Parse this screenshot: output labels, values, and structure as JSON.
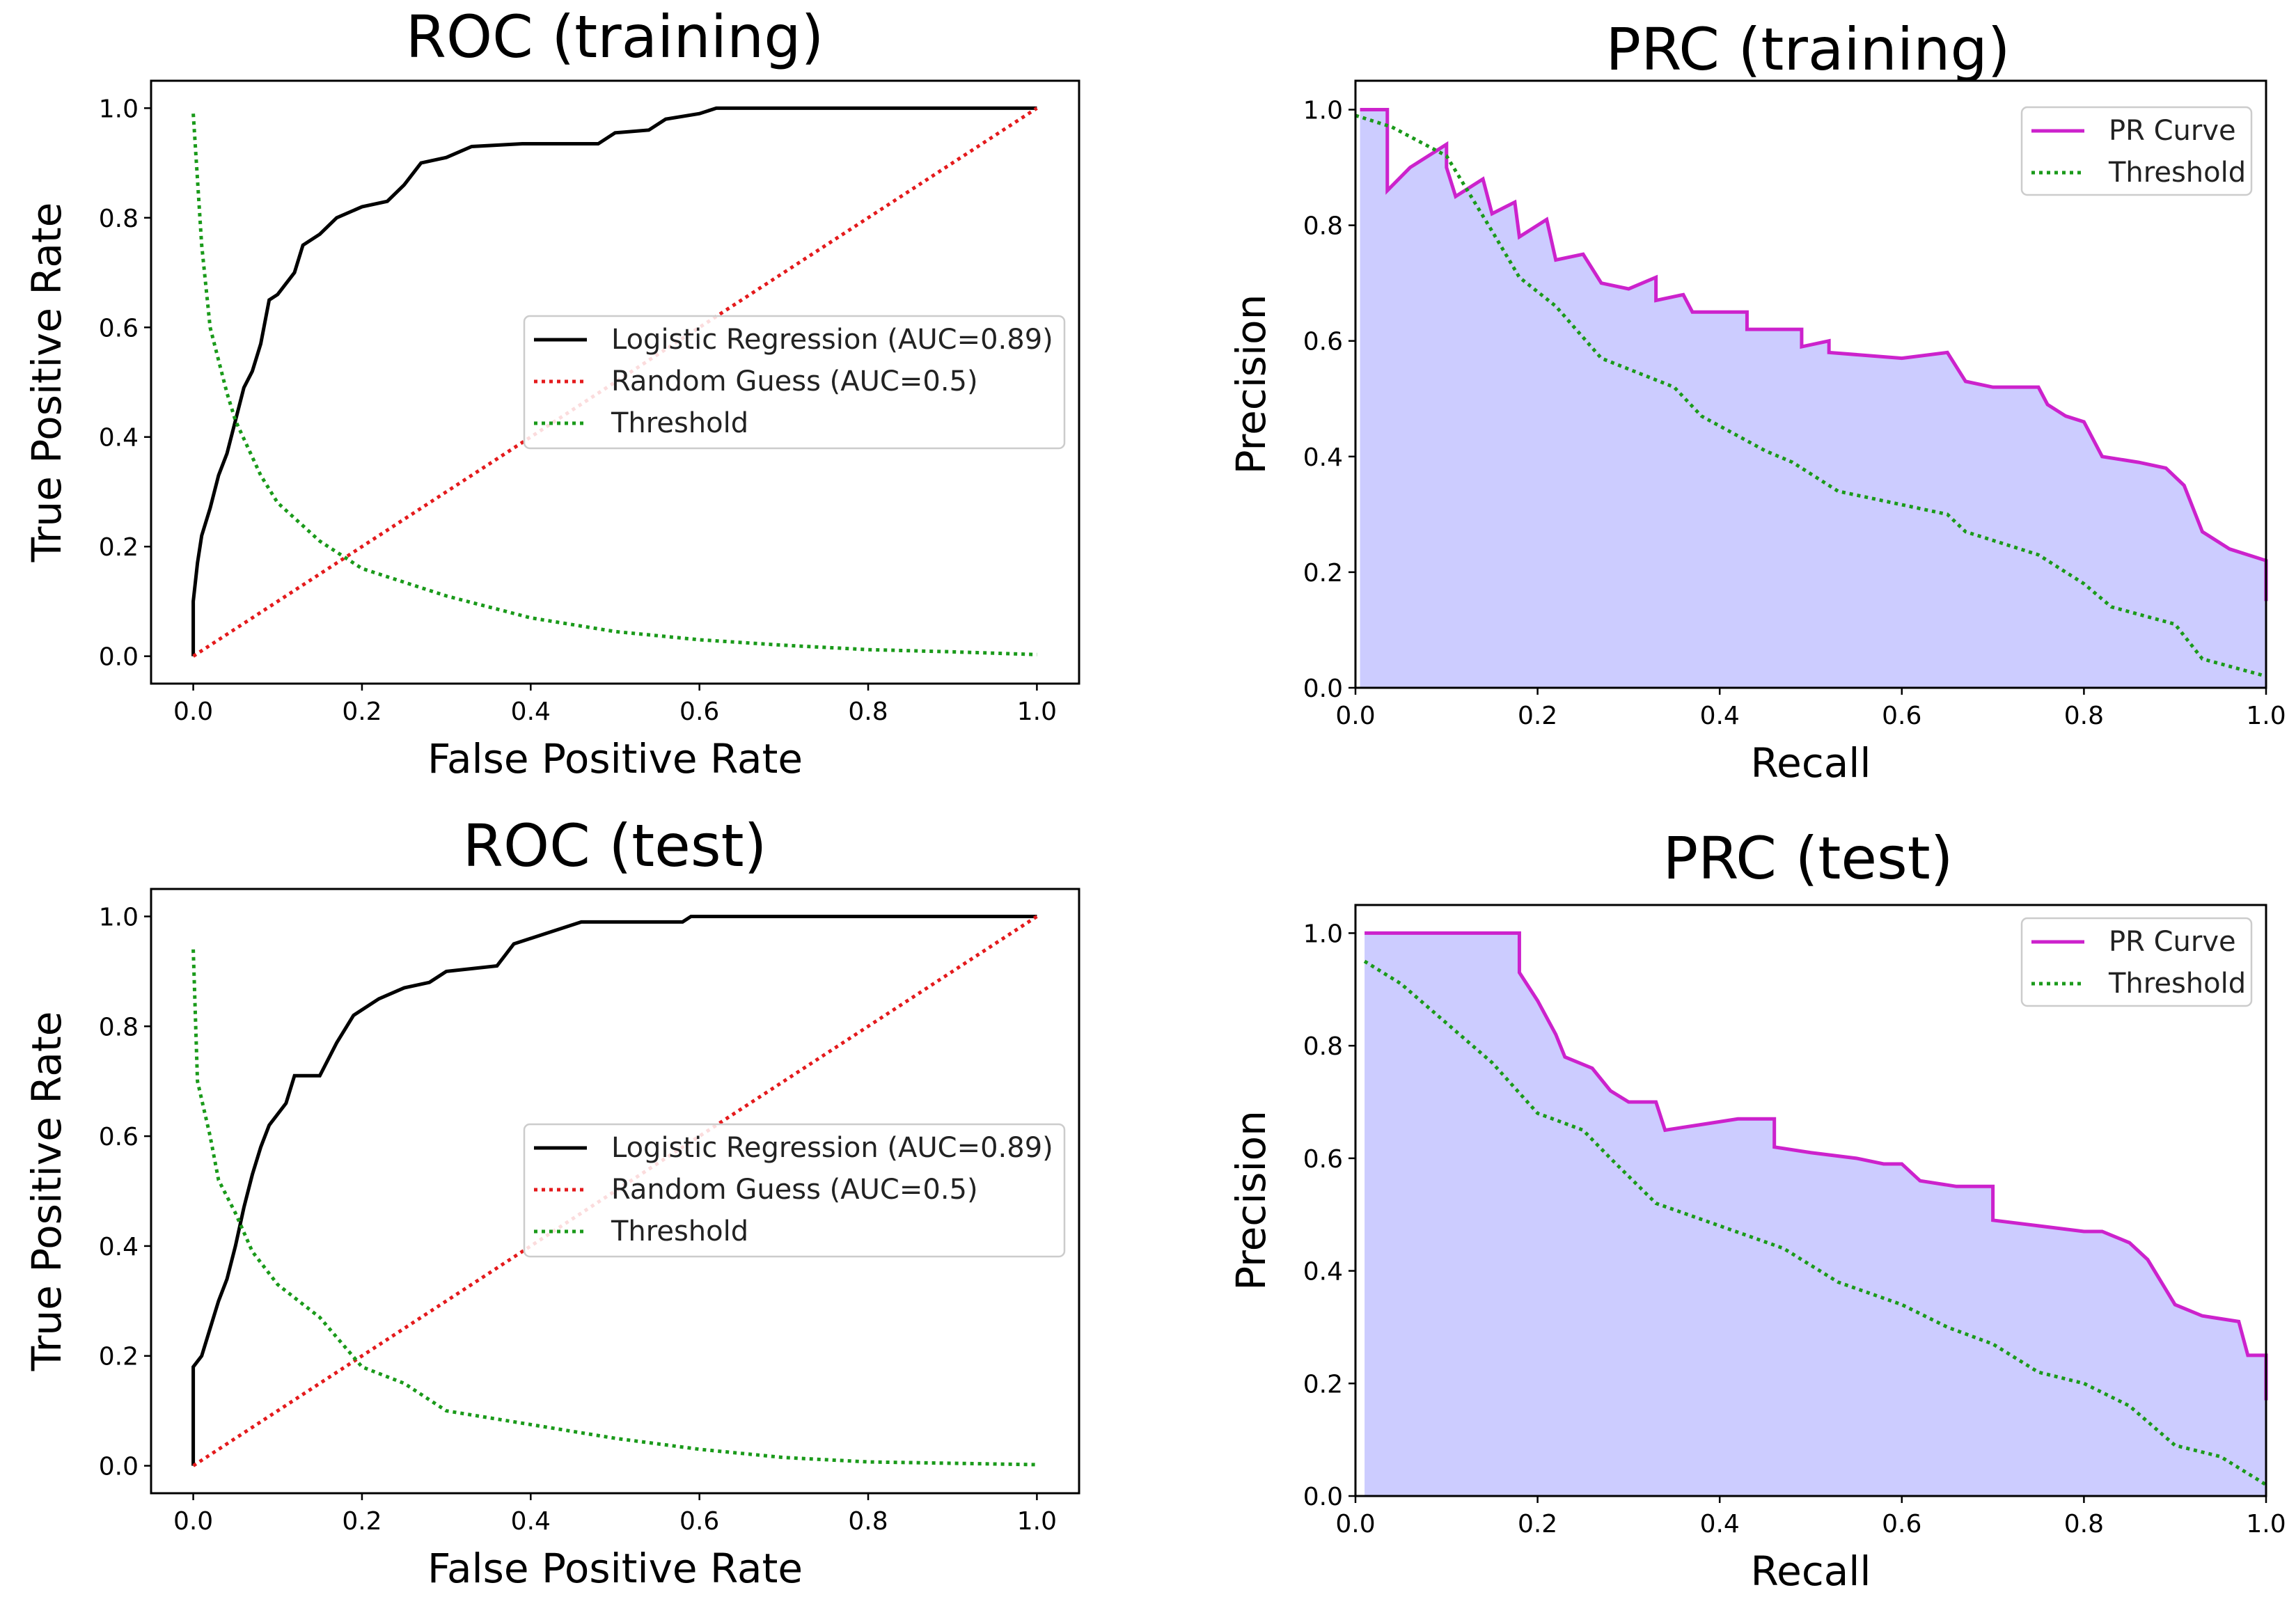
{
  "chart_data": [
    {
      "type": "line",
      "title": "ROC (training)",
      "xlabel": "False Positive Rate",
      "ylabel": "True Positive Rate",
      "xlim": [
        -0.05,
        1.05
      ],
      "ylim": [
        -0.05,
        1.05
      ],
      "xticks": [
        "0.0",
        "0.2",
        "0.4",
        "0.6",
        "0.8",
        "1.0"
      ],
      "yticks": [
        "0.0",
        "0.2",
        "0.4",
        "0.6",
        "0.8",
        "1.0"
      ],
      "legend_position": "center-right",
      "series": [
        {
          "name": "Logistic Regression (AUC=0.89)",
          "color": "#000000",
          "style": "solid",
          "step": true,
          "points": [
            [
              0,
              0
            ],
            [
              0,
              0.1
            ],
            [
              0.005,
              0.17
            ],
            [
              0.01,
              0.22
            ],
            [
              0.02,
              0.27
            ],
            [
              0.03,
              0.33
            ],
            [
              0.04,
              0.37
            ],
            [
              0.05,
              0.43
            ],
            [
              0.06,
              0.49
            ],
            [
              0.07,
              0.52
            ],
            [
              0.08,
              0.57
            ],
            [
              0.09,
              0.65
            ],
            [
              0.1,
              0.66
            ],
            [
              0.12,
              0.7
            ],
            [
              0.13,
              0.75
            ],
            [
              0.15,
              0.77
            ],
            [
              0.17,
              0.8
            ],
            [
              0.2,
              0.82
            ],
            [
              0.23,
              0.83
            ],
            [
              0.25,
              0.86
            ],
            [
              0.27,
              0.9
            ],
            [
              0.3,
              0.91
            ],
            [
              0.33,
              0.93
            ],
            [
              0.39,
              0.935
            ],
            [
              0.48,
              0.935
            ],
            [
              0.5,
              0.955
            ],
            [
              0.54,
              0.96
            ],
            [
              0.56,
              0.98
            ],
            [
              0.6,
              0.99
            ],
            [
              0.62,
              1.0
            ],
            [
              1,
              1
            ]
          ]
        },
        {
          "name": "Random Guess (AUC=0.5)",
          "color": "#e41a1c",
          "style": "dotted",
          "points": [
            [
              0,
              0
            ],
            [
              1,
              1
            ]
          ]
        },
        {
          "name": "Threshold",
          "color": "#1a9a1a",
          "style": "dotted",
          "points": [
            [
              0,
              0.99
            ],
            [
              0.01,
              0.75
            ],
            [
              0.02,
              0.6
            ],
            [
              0.04,
              0.48
            ],
            [
              0.05,
              0.43
            ],
            [
              0.08,
              0.33
            ],
            [
              0.1,
              0.28
            ],
            [
              0.15,
              0.21
            ],
            [
              0.2,
              0.16
            ],
            [
              0.3,
              0.11
            ],
            [
              0.4,
              0.07
            ],
            [
              0.5,
              0.045
            ],
            [
              0.6,
              0.03
            ],
            [
              0.7,
              0.02
            ],
            [
              0.8,
              0.012
            ],
            [
              0.9,
              0.008
            ],
            [
              1,
              0.003
            ]
          ]
        }
      ]
    },
    {
      "type": "area",
      "title": "PRC (training)",
      "xlabel": "Recall",
      "ylabel": "Precision",
      "xlim": [
        0,
        1
      ],
      "ylim": [
        0,
        1.05
      ],
      "xticks": [
        "0.0",
        "0.2",
        "0.4",
        "0.6",
        "0.8",
        "1.0"
      ],
      "yticks": [
        "0.0",
        "0.2",
        "0.4",
        "0.6",
        "0.8",
        "1.0"
      ],
      "legend_position": "top-right",
      "fill_color": "#ccccff",
      "series": [
        {
          "name": "PR Curve",
          "color": "#cc22cc",
          "style": "solid",
          "fill": true,
          "points": [
            [
              0.005,
              1
            ],
            [
              0.035,
              1
            ],
            [
              0.035,
              0.86
            ],
            [
              0.06,
              0.9
            ],
            [
              0.1,
              0.94
            ],
            [
              0.1,
              0.9
            ],
            [
              0.11,
              0.85
            ],
            [
              0.14,
              0.88
            ],
            [
              0.15,
              0.82
            ],
            [
              0.175,
              0.84
            ],
            [
              0.18,
              0.78
            ],
            [
              0.21,
              0.81
            ],
            [
              0.22,
              0.74
            ],
            [
              0.25,
              0.75
            ],
            [
              0.27,
              0.7
            ],
            [
              0.3,
              0.69
            ],
            [
              0.33,
              0.71
            ],
            [
              0.33,
              0.67
            ],
            [
              0.36,
              0.68
            ],
            [
              0.37,
              0.65
            ],
            [
              0.43,
              0.65
            ],
            [
              0.43,
              0.62
            ],
            [
              0.49,
              0.62
            ],
            [
              0.49,
              0.59
            ],
            [
              0.52,
              0.6
            ],
            [
              0.52,
              0.58
            ],
            [
              0.6,
              0.57
            ],
            [
              0.65,
              0.58
            ],
            [
              0.67,
              0.53
            ],
            [
              0.7,
              0.52
            ],
            [
              0.75,
              0.52
            ],
            [
              0.76,
              0.49
            ],
            [
              0.78,
              0.47
            ],
            [
              0.8,
              0.46
            ],
            [
              0.82,
              0.4
            ],
            [
              0.86,
              0.39
            ],
            [
              0.89,
              0.38
            ],
            [
              0.91,
              0.35
            ],
            [
              0.93,
              0.27
            ],
            [
              0.96,
              0.24
            ],
            [
              1,
              0.22
            ],
            [
              1,
              0.15
            ]
          ]
        },
        {
          "name": "Threshold",
          "color": "#1a9a1a",
          "style": "dotted",
          "points": [
            [
              0,
              0.99
            ],
            [
              0.04,
              0.97
            ],
            [
              0.1,
              0.92
            ],
            [
              0.15,
              0.79
            ],
            [
              0.18,
              0.71
            ],
            [
              0.22,
              0.66
            ],
            [
              0.27,
              0.57
            ],
            [
              0.35,
              0.52
            ],
            [
              0.38,
              0.47
            ],
            [
              0.45,
              0.41
            ],
            [
              0.48,
              0.39
            ],
            [
              0.53,
              0.34
            ],
            [
              0.65,
              0.3
            ],
            [
              0.67,
              0.27
            ],
            [
              0.75,
              0.23
            ],
            [
              0.8,
              0.18
            ],
            [
              0.83,
              0.14
            ],
            [
              0.9,
              0.11
            ],
            [
              0.93,
              0.05
            ],
            [
              1,
              0.02
            ]
          ]
        }
      ]
    },
    {
      "type": "line",
      "title": "ROC (test)",
      "xlabel": "False Positive Rate",
      "ylabel": "True Positive Rate",
      "xlim": [
        -0.05,
        1.05
      ],
      "ylim": [
        -0.05,
        1.05
      ],
      "xticks": [
        "0.0",
        "0.2",
        "0.4",
        "0.6",
        "0.8",
        "1.0"
      ],
      "yticks": [
        "0.0",
        "0.2",
        "0.4",
        "0.6",
        "0.8",
        "1.0"
      ],
      "legend_position": "center-right",
      "series": [
        {
          "name": "Logistic Regression (AUC=0.89)",
          "color": "#000000",
          "style": "solid",
          "step": true,
          "points": [
            [
              0,
              0
            ],
            [
              0,
              0.18
            ],
            [
              0.01,
              0.2
            ],
            [
              0.02,
              0.25
            ],
            [
              0.03,
              0.3
            ],
            [
              0.04,
              0.34
            ],
            [
              0.05,
              0.4
            ],
            [
              0.06,
              0.47
            ],
            [
              0.07,
              0.53
            ],
            [
              0.08,
              0.58
            ],
            [
              0.09,
              0.62
            ],
            [
              0.11,
              0.66
            ],
            [
              0.12,
              0.71
            ],
            [
              0.15,
              0.71
            ],
            [
              0.17,
              0.77
            ],
            [
              0.19,
              0.82
            ],
            [
              0.22,
              0.85
            ],
            [
              0.25,
              0.87
            ],
            [
              0.28,
              0.88
            ],
            [
              0.3,
              0.9
            ],
            [
              0.36,
              0.91
            ],
            [
              0.38,
              0.95
            ],
            [
              0.42,
              0.97
            ],
            [
              0.46,
              0.99
            ],
            [
              0.58,
              0.99
            ],
            [
              0.59,
              1.0
            ],
            [
              1,
              1
            ]
          ]
        },
        {
          "name": "Random Guess (AUC=0.5)",
          "color": "#e41a1c",
          "style": "dotted",
          "points": [
            [
              0,
              0
            ],
            [
              1,
              1
            ]
          ]
        },
        {
          "name": "Threshold",
          "color": "#1a9a1a",
          "style": "dotted",
          "points": [
            [
              0,
              0.94
            ],
            [
              0.005,
              0.7
            ],
            [
              0.02,
              0.6
            ],
            [
              0.03,
              0.52
            ],
            [
              0.05,
              0.46
            ],
            [
              0.07,
              0.39
            ],
            [
              0.1,
              0.33
            ],
            [
              0.15,
              0.27
            ],
            [
              0.2,
              0.18
            ],
            [
              0.25,
              0.15
            ],
            [
              0.3,
              0.1
            ],
            [
              0.4,
              0.075
            ],
            [
              0.5,
              0.05
            ],
            [
              0.6,
              0.03
            ],
            [
              0.7,
              0.015
            ],
            [
              0.8,
              0.007
            ],
            [
              1,
              0.002
            ]
          ]
        }
      ]
    },
    {
      "type": "area",
      "title": "PRC (test)",
      "xlabel": "Recall",
      "ylabel": "Precision",
      "xlim": [
        0,
        1
      ],
      "ylim": [
        0,
        1.05
      ],
      "xticks": [
        "0.0",
        "0.2",
        "0.4",
        "0.6",
        "0.8",
        "1.0"
      ],
      "yticks": [
        "0.0",
        "0.2",
        "0.4",
        "0.6",
        "0.8",
        "1.0"
      ],
      "legend_position": "top-right",
      "fill_color": "#ccccff",
      "series": [
        {
          "name": "PR Curve",
          "color": "#cc22cc",
          "style": "solid",
          "fill": true,
          "points": [
            [
              0.01,
              1
            ],
            [
              0.18,
              1
            ],
            [
              0.18,
              0.93
            ],
            [
              0.2,
              0.88
            ],
            [
              0.22,
              0.82
            ],
            [
              0.23,
              0.78
            ],
            [
              0.26,
              0.76
            ],
            [
              0.28,
              0.72
            ],
            [
              0.3,
              0.7
            ],
            [
              0.33,
              0.7
            ],
            [
              0.34,
              0.65
            ],
            [
              0.38,
              0.66
            ],
            [
              0.42,
              0.67
            ],
            [
              0.46,
              0.67
            ],
            [
              0.46,
              0.62
            ],
            [
              0.5,
              0.61
            ],
            [
              0.55,
              0.6
            ],
            [
              0.58,
              0.59
            ],
            [
              0.6,
              0.59
            ],
            [
              0.62,
              0.56
            ],
            [
              0.66,
              0.55
            ],
            [
              0.7,
              0.55
            ],
            [
              0.7,
              0.49
            ],
            [
              0.75,
              0.48
            ],
            [
              0.8,
              0.47
            ],
            [
              0.82,
              0.47
            ],
            [
              0.85,
              0.45
            ],
            [
              0.87,
              0.42
            ],
            [
              0.9,
              0.34
            ],
            [
              0.93,
              0.32
            ],
            [
              0.97,
              0.31
            ],
            [
              0.98,
              0.25
            ],
            [
              1,
              0.25
            ],
            [
              1,
              0.17
            ]
          ]
        },
        {
          "name": "Threshold",
          "color": "#1a9a1a",
          "style": "dotted",
          "points": [
            [
              0.01,
              0.95
            ],
            [
              0.05,
              0.91
            ],
            [
              0.1,
              0.84
            ],
            [
              0.15,
              0.77
            ],
            [
              0.2,
              0.68
            ],
            [
              0.25,
              0.65
            ],
            [
              0.28,
              0.6
            ],
            [
              0.33,
              0.52
            ],
            [
              0.4,
              0.48
            ],
            [
              0.47,
              0.44
            ],
            [
              0.53,
              0.38
            ],
            [
              0.6,
              0.34
            ],
            [
              0.65,
              0.3
            ],
            [
              0.7,
              0.27
            ],
            [
              0.75,
              0.22
            ],
            [
              0.8,
              0.2
            ],
            [
              0.85,
              0.16
            ],
            [
              0.9,
              0.09
            ],
            [
              0.95,
              0.07
            ],
            [
              1,
              0.02
            ]
          ]
        }
      ]
    }
  ]
}
